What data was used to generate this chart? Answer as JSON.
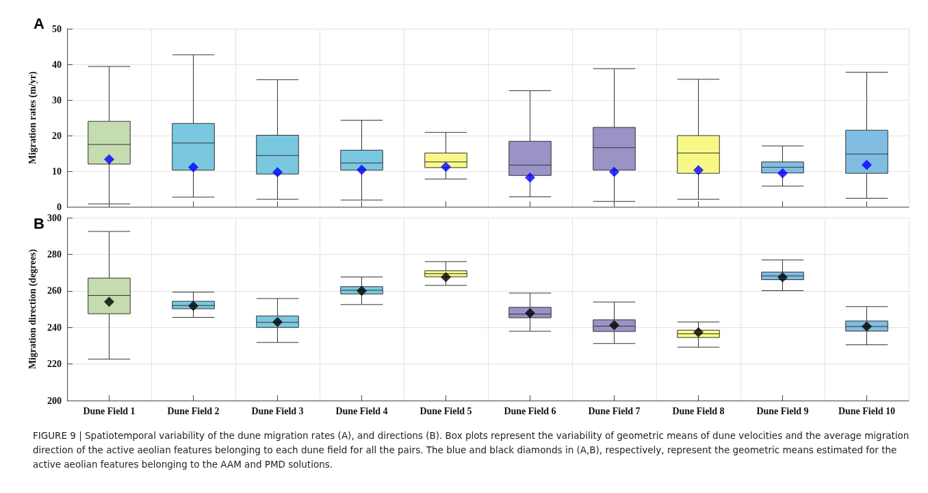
{
  "chart_data": [
    {
      "type": "box",
      "title": "A",
      "ylabel": "Migration rates (m/yr)",
      "categories": [
        "Dune Field 1",
        "Dune Field 2",
        "Dune Field 3",
        "Dune Field 4",
        "Dune Field 5",
        "Dune Field 6",
        "Dune Field 7",
        "Dune Field 8",
        "Dune Field 9",
        "Dune Field 10"
      ],
      "colors": [
        "#c5dcb0",
        "#7ac8e0",
        "#7ac8e0",
        "#7ac8e0",
        "#f8f887",
        "#9a93c6",
        "#9a93c6",
        "#f8f887",
        "#80bde3",
        "#80bde3"
      ],
      "boxes": [
        {
          "low": 0.8,
          "q1": 12,
          "median": 17.5,
          "q3": 24,
          "high": 39.4
        },
        {
          "low": 2.7,
          "q1": 10.3,
          "median": 17.9,
          "q3": 23.4,
          "high": 42.7
        },
        {
          "low": 2.1,
          "q1": 9.2,
          "median": 14.4,
          "q3": 20.1,
          "high": 35.7
        },
        {
          "low": 1.9,
          "q1": 10.3,
          "median": 12.3,
          "q3": 15.9,
          "high": 24.3
        },
        {
          "low": 7.8,
          "q1": 11,
          "median": 12.6,
          "q3": 15.1,
          "high": 20.9
        },
        {
          "low": 2.8,
          "q1": 8.8,
          "median": 11.7,
          "q3": 18.4,
          "high": 32.6
        },
        {
          "low": 1.5,
          "q1": 10.3,
          "median": 16.6,
          "q3": 22.3,
          "high": 38.8
        },
        {
          "low": 2.1,
          "q1": 9.4,
          "median": 15.1,
          "q3": 20,
          "high": 35.8
        },
        {
          "low": 5.8,
          "q1": 9.5,
          "median": 11.1,
          "q3": 12.6,
          "high": 17.1
        },
        {
          "low": 2.4,
          "q1": 9.4,
          "median": 14.8,
          "q3": 21.5,
          "high": 37.8
        }
      ],
      "series": [
        {
          "type": "scatter",
          "color": "#0000ff",
          "marker": "diamond",
          "x": [
            "Dune Field 1",
            "Dune Field 2",
            "Dune Field 3",
            "Dune Field 4",
            "Dune Field 5",
            "Dune Field 6",
            "Dune Field 7",
            "Dune Field 8",
            "Dune Field 9",
            "Dune Field 10"
          ],
          "values": [
            13.3,
            11.1,
            9.7,
            10.4,
            11.2,
            8.2,
            9.8,
            10.3,
            9.4,
            11.8
          ]
        }
      ],
      "ylim": [
        0,
        50
      ],
      "yticks": [
        0,
        10,
        20,
        30,
        40,
        50
      ],
      "grid": true,
      "tick_labels": "y"
    },
    {
      "type": "box",
      "title": "B",
      "ylabel": "Migration direction (degrees)",
      "categories": [
        "Dune Field 1",
        "Dune Field 2",
        "Dune Field 3",
        "Dune Field 4",
        "Dune Field 5",
        "Dune Field 6",
        "Dune Field 7",
        "Dune Field 8",
        "Dune Field 9",
        "Dune Field 10"
      ],
      "colors": [
        "#c5dcb0",
        "#7ac8e0",
        "#7ac8e0",
        "#7ac8e0",
        "#f8f887",
        "#9a93c6",
        "#9a93c6",
        "#f8f887",
        "#80bde3",
        "#80bde3"
      ],
      "boxes": [
        {
          "low": 222.7,
          "q1": 247.5,
          "median": 257.5,
          "q3": 267,
          "high": 292.5
        },
        {
          "low": 245.5,
          "q1": 250.2,
          "median": 252,
          "q3": 254.3,
          "high": 259.3
        },
        {
          "low": 231.8,
          "q1": 240,
          "median": 242.8,
          "q3": 246.3,
          "high": 255.8
        },
        {
          "low": 252.5,
          "q1": 258.3,
          "median": 260.3,
          "q3": 262.3,
          "high": 267.6
        },
        {
          "low": 263,
          "q1": 267.7,
          "median": 269.4,
          "q3": 271,
          "high": 276
        },
        {
          "low": 237.9,
          "q1": 245.3,
          "median": 247.3,
          "q3": 251,
          "high": 258.8
        },
        {
          "low": 231.2,
          "q1": 237.8,
          "median": 240.7,
          "q3": 244.2,
          "high": 253.9
        },
        {
          "low": 229.2,
          "q1": 234.5,
          "median": 236.5,
          "q3": 238.5,
          "high": 243
        },
        {
          "low": 260.1,
          "q1": 266.1,
          "median": 268.2,
          "q3": 270.3,
          "high": 276.9
        },
        {
          "low": 230.5,
          "q1": 238,
          "median": 240.5,
          "q3": 243.5,
          "high": 251.4
        }
      ],
      "series": [
        {
          "type": "scatter",
          "color": "#000000",
          "marker": "diamond",
          "x": [
            "Dune Field 1",
            "Dune Field 2",
            "Dune Field 3",
            "Dune Field 4",
            "Dune Field 5",
            "Dune Field 6",
            "Dune Field 7",
            "Dune Field 8",
            "Dune Field 9",
            "Dune Field 10"
          ],
          "values": [
            254,
            251.8,
            243,
            260,
            267.5,
            247.8,
            241.2,
            237.4,
            267.4,
            240.5
          ]
        }
      ],
      "ylim": [
        200,
        300
      ],
      "yticks": [
        200,
        220,
        240,
        260,
        280,
        300
      ],
      "grid": true,
      "annotations": [
        "FIGURE 9 | Spatiotemporal variability of the dune migration rates (A), and directions (B). Box plots represent the variability of geometric means of dune velocities and the average migration direction of the active aeolian features belonging to each dune field for all the pairs. The blue and black diamonds in (A,B), respectively, represent the geometric means estimated for the active aeolian features belonging to the AAM and PMD solutions."
      ]
    }
  ]
}
